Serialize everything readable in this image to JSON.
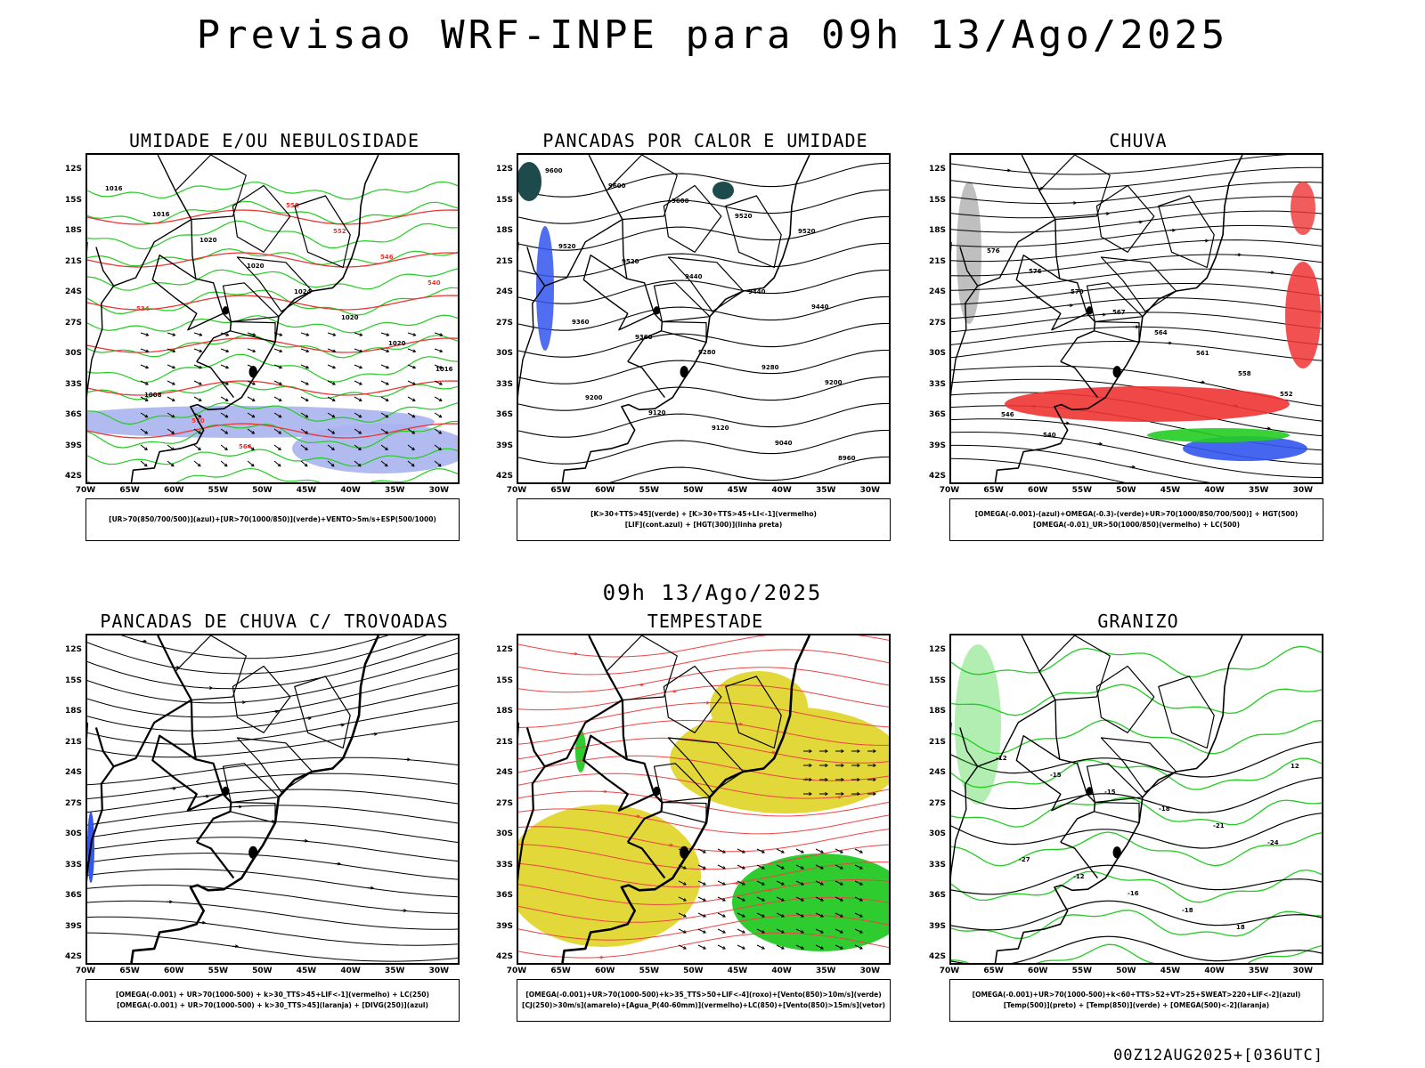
{
  "header": {
    "title": "Previsao WRF-INPE  para 09h 13/Ago/2025"
  },
  "subtitle": "09h 13/Ago/2025",
  "footer": "00Z12AUG2025+[036UTC]",
  "axes": {
    "lat_labels": [
      "12S",
      "15S",
      "18S",
      "21S",
      "24S",
      "27S",
      "30S",
      "33S",
      "36S",
      "39S",
      "42S"
    ],
    "lon_labels": [
      "70W",
      "65W",
      "60W",
      "55W",
      "50W",
      "45W",
      "40W",
      "35W",
      "30W"
    ]
  },
  "panels": [
    {
      "title": "UMIDADE E/OU NEBULOSIDADE",
      "legend": [
        "[UR>70(850/700/500)](azul)+[UR>70(1000/850)](verde)+VENTO>5m/s+ESP(500/1000)"
      ],
      "contour_labels": [
        "1016",
        "1016",
        "1020",
        "1020",
        "1024",
        "1020",
        "1020",
        "1016",
        "1008",
        "570",
        "564",
        "558",
        "552",
        "546",
        "540",
        "534"
      ]
    },
    {
      "title": "PANCADAS POR CALOR E UMIDADE",
      "legend": [
        "[K>30+TTS>45](verde) + [K>30+TTS>45+LI<-1](vermelho)",
        "[LIF](cont.azul) + [HGT(300)](linha preta)"
      ],
      "contour_labels": [
        "9600",
        "9600",
        "9600",
        "9520",
        "9520",
        "9520",
        "9520",
        "9440",
        "9440",
        "9440",
        "9360",
        "9360",
        "9280",
        "9280",
        "9200",
        "9200",
        "9120",
        "9120",
        "9040",
        "8960"
      ]
    },
    {
      "title": "CHUVA",
      "legend": [
        "[OMEGA(-0.001)-(azul)+OMEGA(-0.3)-(verde)+UR>70(1000/850/700/500)] + HGT(500)",
        "[OMEGA(-0.01)_UR>50(1000/850)(vermelho) + LC(500)"
      ],
      "contour_labels": [
        "576",
        "576",
        "570",
        "567",
        "564",
        "561",
        "558",
        "552",
        "546",
        "540"
      ]
    },
    {
      "title": "PANCADAS DE CHUVA C/ TROVOADAS",
      "legend": [
        "[OMEGA(-0.001) + UR>70(1000-500) + k>30_TTS>45+LIF<-1](vermelho) + LC(250)",
        "[OMEGA(-0.001) + UR>70(1000-500) + k>30_TTS>45](laranja) + [DIVG(250)](azul)"
      ],
      "contour_labels": []
    },
    {
      "title": "TEMPESTADE",
      "legend": [
        "[OMEGA(-0.001)+UR>70(1000-500)+k>35_TTS>50+LIF<-4](roxo)+[Vento(850)>10m/s](verde)",
        "[CJ(250)>30m/s](amarelo)+[Agua_P(40-60mm)](vermelho)+LC(850)+[Vento(850)>15m/s](vetor)"
      ],
      "contour_labels": []
    },
    {
      "title": "GRANIZO",
      "legend": [
        "[OMEGA(-0.001)+UR>70(1000-500)+k<60+TTS>52+VT>25+SWEAT>220+LIF<-2](azul)",
        "[Temp(500)](preto) + [Temp(850)](verde) + [OMEGA(500)<-2](laranja)"
      ],
      "contour_labels": [
        "-12",
        "-15",
        "-15",
        "-18",
        "-21",
        "-24",
        "-27",
        "-12",
        "-16",
        "-18",
        "18",
        "12"
      ]
    }
  ],
  "colors": {
    "coast": "#000000",
    "green": "#22cc22",
    "red": "#ee3333",
    "blue": "#3355ee",
    "lightblue": "#aab4ee",
    "yellow": "#e2d83a",
    "darkteal": "#1d4a4a",
    "stream_red": "#ee4444"
  }
}
